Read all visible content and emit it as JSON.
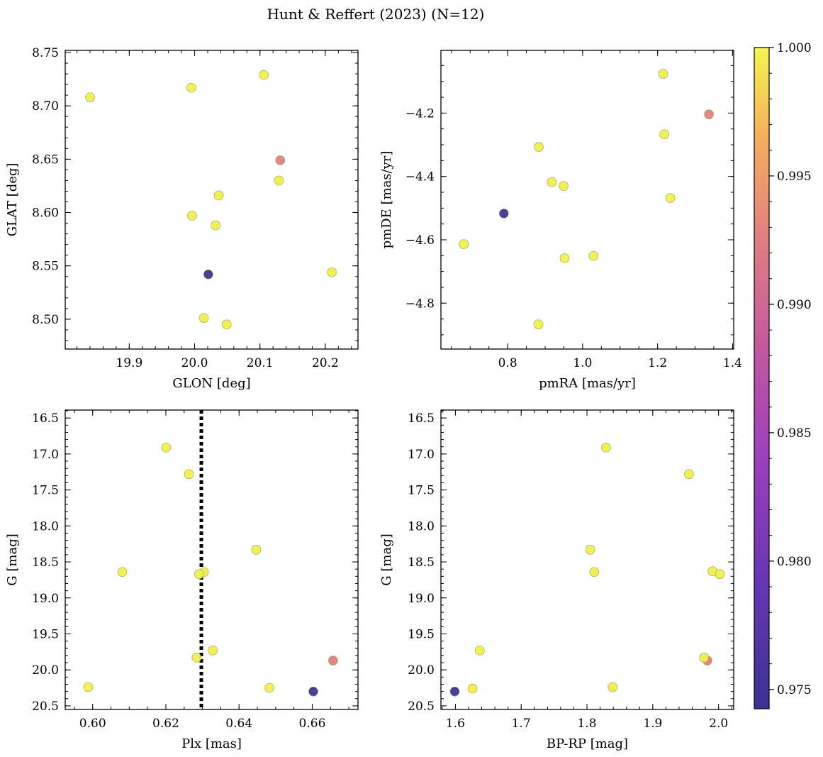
{
  "title": "Hunt & Reffert (2023) (N=12)",
  "colorbar": {
    "range": [
      0.97425,
      1.0
    ],
    "ticks": [
      0.975,
      0.98,
      0.985,
      0.99,
      0.995,
      1.0
    ],
    "tick_labels": [
      "0.975",
      "0.980",
      "0.985",
      "0.990",
      "0.995",
      "1.000"
    ],
    "colormap": "plasma"
  },
  "chart_data": [
    {
      "id": "glon-glat",
      "type": "scatter",
      "xlabel": "GLON [deg]",
      "ylabel": "GLAT [deg]",
      "xlim": [
        19.802,
        20.25
      ],
      "ylim": [
        8.472,
        8.752
      ],
      "xticks": [
        19.9,
        20.0,
        20.1,
        20.2
      ],
      "xtick_labels": [
        "19.9",
        "20.0",
        "20.1",
        "20.2"
      ],
      "xminor": 0.02,
      "yticks": [
        8.5,
        8.55,
        8.6,
        8.65,
        8.7,
        8.75
      ],
      "ytick_labels": [
        "8.50",
        "8.55",
        "8.60",
        "8.65",
        "8.70",
        "8.75"
      ],
      "yminor": 0.01,
      "points": [
        {
          "x": 19.84,
          "y": 8.708,
          "c": 1.0
        },
        {
          "x": 19.995,
          "y": 8.717,
          "c": 1.0
        },
        {
          "x": 20.106,
          "y": 8.729,
          "c": 1.0
        },
        {
          "x": 20.131,
          "y": 8.649,
          "c": 0.99
        },
        {
          "x": 20.129,
          "y": 8.63,
          "c": 1.0
        },
        {
          "x": 20.037,
          "y": 8.616,
          "c": 1.0
        },
        {
          "x": 19.996,
          "y": 8.597,
          "c": 1.0
        },
        {
          "x": 20.032,
          "y": 8.588,
          "c": 1.0
        },
        {
          "x": 20.021,
          "y": 8.542,
          "c": 0.9745
        },
        {
          "x": 20.21,
          "y": 8.544,
          "c": 1.0
        },
        {
          "x": 20.014,
          "y": 8.501,
          "c": 1.0
        },
        {
          "x": 20.049,
          "y": 8.495,
          "c": 1.0
        }
      ]
    },
    {
      "id": "pmra-pmde",
      "type": "scatter",
      "xlabel": "pmRA [mas/yr]",
      "ylabel": "pmDE [mas/yr]",
      "xlim": [
        0.622,
        1.403
      ],
      "ylim": [
        -4.945,
        -4.002
      ],
      "xticks": [
        0.8,
        1.0,
        1.2,
        1.4
      ],
      "xtick_labels": [
        "0.8",
        "1.0",
        "1.2",
        "1.4"
      ],
      "xminor": 0.05,
      "yticks": [
        -4.8,
        -4.6,
        -4.4,
        -4.2
      ],
      "ytick_labels": [
        "−4.8",
        "−4.6",
        "−4.4",
        "−4.2"
      ],
      "yminor": 0.05,
      "points": [
        {
          "x": 1.215,
          "y": -4.076,
          "c": 1.0
        },
        {
          "x": 1.337,
          "y": -4.204,
          "c": 0.99
        },
        {
          "x": 1.218,
          "y": -4.267,
          "c": 1.0
        },
        {
          "x": 0.883,
          "y": -4.307,
          "c": 1.0
        },
        {
          "x": 0.918,
          "y": -4.418,
          "c": 1.0
        },
        {
          "x": 0.949,
          "y": -4.43,
          "c": 1.0
        },
        {
          "x": 1.234,
          "y": -4.468,
          "c": 1.0
        },
        {
          "x": 0.79,
          "y": -4.517,
          "c": 0.9745
        },
        {
          "x": 0.683,
          "y": -4.614,
          "c": 1.0
        },
        {
          "x": 1.029,
          "y": -4.651,
          "c": 1.0
        },
        {
          "x": 0.952,
          "y": -4.658,
          "c": 1.0
        },
        {
          "x": 0.882,
          "y": -4.867,
          "c": 1.0
        }
      ]
    },
    {
      "id": "plx-g",
      "type": "scatter",
      "xlabel": "Plx [mas]",
      "ylabel": "G [mag]",
      "xlim": [
        0.5925,
        0.6725
      ],
      "ylim": [
        20.55,
        16.39
      ],
      "xticks": [
        0.6,
        0.62,
        0.64,
        0.66
      ],
      "xtick_labels": [
        "0.60",
        "0.62",
        "0.64",
        "0.66"
      ],
      "xminor": 0.005,
      "yticks": [
        16.5,
        17.0,
        17.5,
        18.0,
        18.5,
        19.0,
        19.5,
        20.0,
        20.5
      ],
      "ytick_labels": [
        "16.5",
        "17.0",
        "17.5",
        "18.0",
        "18.5",
        "19.0",
        "19.5",
        "20.0",
        "20.5"
      ],
      "yminor": 0.1,
      "vline": 0.6297,
      "points": [
        {
          "x": 0.6201,
          "y": 16.91,
          "c": 1.0
        },
        {
          "x": 0.6263,
          "y": 17.28,
          "c": 1.0
        },
        {
          "x": 0.6447,
          "y": 18.33,
          "c": 1.0
        },
        {
          "x": 0.6081,
          "y": 18.64,
          "c": 1.0
        },
        {
          "x": 0.6304,
          "y": 18.64,
          "c": 1.0
        },
        {
          "x": 0.6291,
          "y": 18.67,
          "c": 1.0
        },
        {
          "x": 0.6328,
          "y": 19.73,
          "c": 1.0
        },
        {
          "x": 0.6284,
          "y": 19.83,
          "c": 1.0
        },
        {
          "x": 0.6657,
          "y": 19.87,
          "c": 0.99
        },
        {
          "x": 0.5988,
          "y": 20.24,
          "c": 1.0
        },
        {
          "x": 0.6483,
          "y": 20.25,
          "c": 1.0
        },
        {
          "x": 0.6603,
          "y": 20.3,
          "c": 0.9745
        }
      ]
    },
    {
      "id": "bprp-g",
      "type": "scatter",
      "xlabel": "BP-RP [mag]",
      "ylabel": "G [mag]",
      "xlim": [
        1.578,
        2.023
      ],
      "ylim": [
        20.55,
        16.39
      ],
      "xticks": [
        1.6,
        1.7,
        1.8,
        1.9,
        2.0
      ],
      "xtick_labels": [
        "1.6",
        "1.7",
        "1.8",
        "1.9",
        "2.0"
      ],
      "xminor": 0.02,
      "yticks": [
        16.5,
        17.0,
        17.5,
        18.0,
        18.5,
        19.0,
        19.5,
        20.0,
        20.5
      ],
      "ytick_labels": [
        "16.5",
        "17.0",
        "17.5",
        "18.0",
        "18.5",
        "19.0",
        "19.5",
        "20.0",
        "20.5"
      ],
      "yminor": 0.1,
      "points": [
        {
          "x": 1.829,
          "y": 16.91,
          "c": 1.0
        },
        {
          "x": 1.955,
          "y": 17.28,
          "c": 1.0
        },
        {
          "x": 1.805,
          "y": 18.33,
          "c": 1.0
        },
        {
          "x": 1.811,
          "y": 18.64,
          "c": 1.0
        },
        {
          "x": 1.991,
          "y": 18.63,
          "c": 1.0
        },
        {
          "x": 2.002,
          "y": 18.67,
          "c": 1.0
        },
        {
          "x": 1.637,
          "y": 19.73,
          "c": 1.0
        },
        {
          "x": 1.983,
          "y": 19.87,
          "c": 0.99
        },
        {
          "x": 1.978,
          "y": 19.83,
          "c": 1.0
        },
        {
          "x": 1.839,
          "y": 20.24,
          "c": 1.0
        },
        {
          "x": 1.626,
          "y": 20.26,
          "c": 1.0
        },
        {
          "x": 1.599,
          "y": 20.3,
          "c": 0.9745
        }
      ]
    }
  ]
}
